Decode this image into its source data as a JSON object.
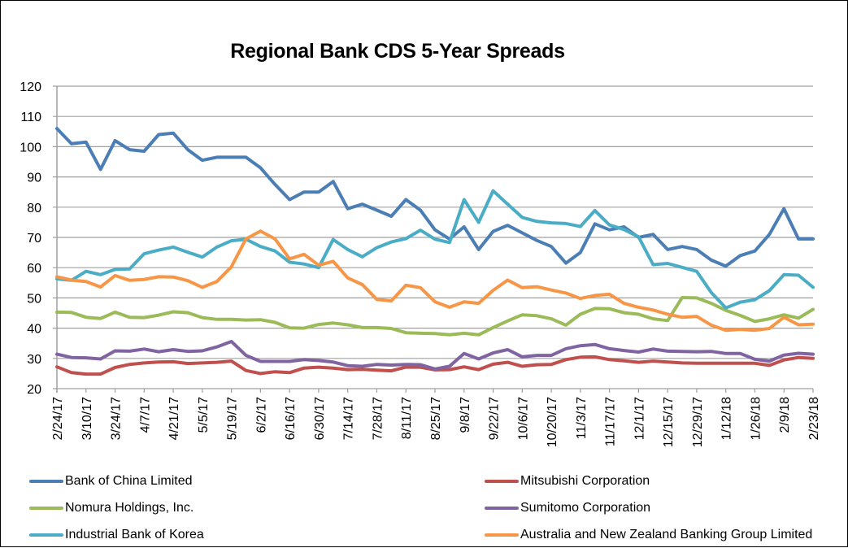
{
  "chart_data": {
    "type": "line",
    "title": "Regional Bank CDS 5-Year Spreads",
    "xlabel": "",
    "ylabel": "",
    "ylim": [
      20,
      120
    ],
    "yticks": [
      20,
      30,
      40,
      50,
      60,
      70,
      80,
      90,
      100,
      110,
      120
    ],
    "grid": true,
    "legend_position": "bottom",
    "x": [
      "2/24/17",
      "3/3/17",
      "3/10/17",
      "3/17/17",
      "3/24/17",
      "3/31/17",
      "4/7/17",
      "4/14/17",
      "4/21/17",
      "4/28/17",
      "5/5/17",
      "5/12/17",
      "5/19/17",
      "5/26/17",
      "6/2/17",
      "6/9/17",
      "6/16/17",
      "6/23/17",
      "6/30/17",
      "7/7/17",
      "7/14/17",
      "7/21/17",
      "7/28/17",
      "8/4/17",
      "8/11/17",
      "8/18/17",
      "8/25/17",
      "9/1/17",
      "9/8/17",
      "9/15/17",
      "9/22/17",
      "9/29/17",
      "10/6/17",
      "10/13/17",
      "10/20/17",
      "10/27/17",
      "11/3/17",
      "11/10/17",
      "11/17/17",
      "11/24/17",
      "12/1/17",
      "12/8/17",
      "12/15/17",
      "12/22/17",
      "12/29/17",
      "1/5/18",
      "1/12/18",
      "1/19/18",
      "1/26/18",
      "2/2/18",
      "2/9/18",
      "2/16/18",
      "2/23/18"
    ],
    "xtick_labels": [
      "2/24/17",
      "3/10/17",
      "3/24/17",
      "4/7/17",
      "4/21/17",
      "5/5/17",
      "5/19/17",
      "6/2/17",
      "6/16/17",
      "6/30/17",
      "7/14/17",
      "7/28/17",
      "8/11/17",
      "8/25/17",
      "9/8/17",
      "9/22/17",
      "10/6/17",
      "10/20/17",
      "11/3/17",
      "11/17/17",
      "12/1/17",
      "12/15/17",
      "12/29/17",
      "1/12/18",
      "1/26/18",
      "2/9/18",
      "2/23/18"
    ],
    "series": [
      {
        "name": "Bank of China Limited",
        "color": "#4a7eb5",
        "values": [
          106,
          101,
          101.5,
          92.5,
          102,
          99,
          98.5,
          104,
          104.5,
          99,
          95.5,
          96.5,
          96.5,
          96.5,
          93,
          87.5,
          82.5,
          85,
          85,
          88.5,
          79.5,
          81,
          79,
          77,
          82.5,
          79,
          72.5,
          69.5,
          73.5,
          66,
          72,
          74,
          71.5,
          69,
          67,
          61.5,
          65,
          74.5,
          72.5,
          73.5,
          70,
          71,
          66,
          67,
          66,
          62.5,
          60.5,
          64,
          65.5,
          71,
          79.5,
          69.5,
          69.5
        ]
      },
      {
        "name": "Mitsubishi Corporation",
        "color": "#c0504d",
        "values": [
          27.2,
          25.3,
          24.8,
          24.8,
          27,
          28,
          28.5,
          28.8,
          28.9,
          28.3,
          28.5,
          28.7,
          29.1,
          26,
          25,
          25.6,
          25.3,
          26.8,
          27.1,
          26.8,
          26.3,
          26.4,
          26.1,
          25.9,
          27.1,
          27.1,
          26.2,
          26.3,
          27.2,
          26.3,
          28.1,
          28.7,
          27.4,
          27.9,
          28,
          29.6,
          30.4,
          30.5,
          29.6,
          29.2,
          28.7,
          29.1,
          28.8,
          28.5,
          28.4,
          28.4,
          28.4,
          28.4,
          28.4,
          27.7,
          29.5,
          30.3,
          30
        ]
      },
      {
        "name": "Nomura Holdings, Inc.",
        "color": "#9bbb59",
        "values": [
          45.3,
          45.2,
          43.6,
          43.2,
          45.3,
          43.6,
          43.5,
          44.3,
          45.4,
          45.1,
          43.5,
          42.9,
          42.9,
          42.7,
          42.8,
          41.9,
          40.1,
          40,
          41.2,
          41.7,
          41.1,
          40.2,
          40.2,
          39.9,
          38.5,
          38.3,
          38.2,
          37.8,
          38.3,
          37.8,
          40.2,
          42.4,
          44.4,
          44.1,
          43.1,
          41,
          44.6,
          46.5,
          46.4,
          45.1,
          44.6,
          43.1,
          42.5,
          50.1,
          50,
          48.2,
          45.9,
          44.2,
          42.2,
          43.1,
          44.4,
          43.3,
          46.2
        ]
      },
      {
        "name": "Sumitomo Corporation",
        "color": "#8064a2",
        "values": [
          31.4,
          30.3,
          30.2,
          29.8,
          32.5,
          32.4,
          33.1,
          32.2,
          32.9,
          32.3,
          32.5,
          33.8,
          35.6,
          31,
          29,
          29,
          29,
          29.6,
          29.3,
          28.8,
          27.6,
          27.4,
          28,
          27.8,
          28,
          27.9,
          26.5,
          27.4,
          31.6,
          29.8,
          31.8,
          32.9,
          30.5,
          31,
          31,
          33.2,
          34.2,
          34.6,
          33.2,
          32.6,
          32.1,
          33.1,
          32.4,
          32.3,
          32.2,
          32.3,
          31.6,
          31.6,
          29.7,
          29.1,
          31.1,
          31.7,
          31.4
        ]
      },
      {
        "name": "Industrial Bank of Korea",
        "color": "#4bacc6",
        "values": [
          56.3,
          55.8,
          58.8,
          57.7,
          59.4,
          59.6,
          64.6,
          65.8,
          66.8,
          65.1,
          63.5,
          66.8,
          68.9,
          69.4,
          67,
          65.5,
          61.8,
          61.2,
          60,
          69.3,
          66,
          63.6,
          66.6,
          68.5,
          69.6,
          72.4,
          69.4,
          68.3,
          82.5,
          75,
          85.4,
          81,
          76.6,
          75.3,
          74.8,
          74.6,
          73.6,
          78.9,
          74.1,
          72.6,
          70.2,
          61,
          61.4,
          60.1,
          58.8,
          51.8,
          46.7,
          48.6,
          49.4,
          52.4,
          57.7,
          57.5,
          53.5
        ]
      },
      {
        "name": "Australia and New Zealand Banking Group Limited",
        "color": "#f79646",
        "values": [
          57,
          55.9,
          55.4,
          53.6,
          57.4,
          55.8,
          56.1,
          57,
          56.9,
          55.7,
          53.5,
          55.4,
          60.3,
          69.5,
          72.1,
          69.5,
          62.9,
          64.4,
          60.8,
          62.1,
          56.6,
          54.4,
          49.5,
          49,
          54.2,
          53.4,
          48.7,
          46.9,
          48.7,
          48.2,
          52.5,
          55.9,
          53.4,
          53.7,
          52.6,
          51.6,
          49.8,
          50.8,
          51.2,
          48.2,
          46.9,
          46,
          44.6,
          43.6,
          43.9,
          41,
          39.3,
          39.6,
          39.3,
          39.9,
          43.6,
          41.1,
          41.3
        ]
      }
    ]
  }
}
